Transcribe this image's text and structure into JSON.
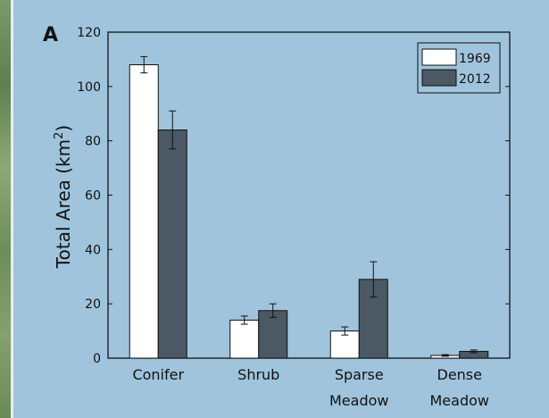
{
  "panel_label": "A",
  "chart_data": {
    "type": "bar",
    "title": "",
    "ylabel": "Total Area (km²)",
    "ylabel_base": "Total Area (km",
    "ylabel_sup": "2",
    "ylabel_close": ")",
    "ylim": [
      0,
      120
    ],
    "yticks": [
      0,
      20,
      40,
      60,
      80,
      100,
      120
    ],
    "categories": [
      {
        "line1": "Conifer",
        "line2": ""
      },
      {
        "line1": "Shrub",
        "line2": ""
      },
      {
        "line1": "Sparse",
        "line2": "Meadow"
      },
      {
        "line1": "Dense",
        "line2": "Meadow"
      }
    ],
    "series": [
      {
        "name": "1969",
        "color": "#ffffff",
        "values": [
          108,
          14,
          10,
          1
        ],
        "err_low": [
          105,
          12.5,
          8.5,
          0.7
        ],
        "err_high": [
          111,
          15.5,
          11.5,
          1.3
        ]
      },
      {
        "name": "2012",
        "color": "#4a5963",
        "values": [
          84,
          17.5,
          29,
          2.5
        ],
        "err_low": [
          77,
          15,
          22.5,
          2
        ],
        "err_high": [
          91,
          20,
          35.5,
          3
        ]
      }
    ],
    "legend_position": "top-right",
    "grid": false
  }
}
